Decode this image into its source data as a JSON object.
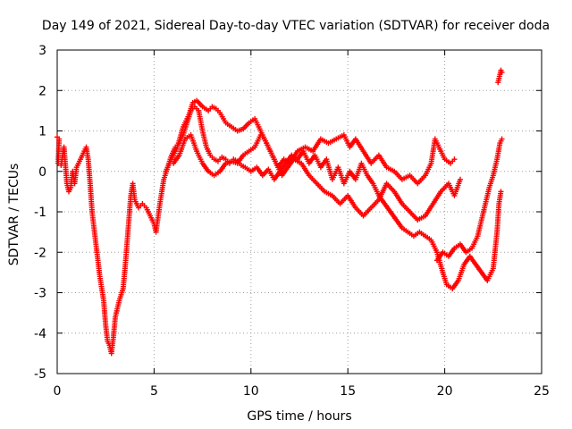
{
  "chart_data": {
    "type": "scatter",
    "title": "Day 149 of 2021, Sidereal Day-to-day VTEC variation (SDTVAR) for receiver doda",
    "xlabel": "GPS time / hours",
    "ylabel": "SDTVAR / TECUs",
    "xlim": [
      0,
      25
    ],
    "ylim": [
      -5,
      3
    ],
    "x_ticks": [
      0,
      5,
      10,
      15,
      20,
      25
    ],
    "y_ticks": [
      -5,
      -4,
      -3,
      -2,
      -1,
      0,
      1,
      2,
      3
    ],
    "grid": true,
    "marker": "+",
    "color": "#ff0000",
    "series": [
      {
        "name": "trace-main",
        "points": [
          [
            0.0,
            0.85
          ],
          [
            0.1,
            0.8
          ],
          [
            0.05,
            0.2
          ],
          [
            0.2,
            0.15
          ],
          [
            0.35,
            0.6
          ],
          [
            0.4,
            0.3
          ],
          [
            0.5,
            -0.3
          ],
          [
            0.6,
            -0.5
          ],
          [
            0.7,
            -0.4
          ],
          [
            0.8,
            0.0
          ],
          [
            0.9,
            -0.3
          ],
          [
            1.0,
            0.1
          ],
          [
            1.2,
            0.3
          ],
          [
            1.4,
            0.5
          ],
          [
            1.5,
            0.6
          ],
          [
            1.6,
            0.3
          ],
          [
            1.7,
            -0.3
          ],
          [
            1.8,
            -1.0
          ],
          [
            2.0,
            -1.8
          ],
          [
            2.2,
            -2.6
          ],
          [
            2.4,
            -3.2
          ],
          [
            2.5,
            -3.8
          ],
          [
            2.6,
            -4.2
          ],
          [
            2.7,
            -4.3
          ],
          [
            2.8,
            -4.5
          ],
          [
            2.9,
            -4.1
          ],
          [
            3.0,
            -3.6
          ],
          [
            3.2,
            -3.2
          ],
          [
            3.4,
            -2.9
          ],
          [
            3.5,
            -2.4
          ],
          [
            3.6,
            -1.8
          ],
          [
            3.7,
            -1.2
          ],
          [
            3.8,
            -0.6
          ],
          [
            3.9,
            -0.3
          ],
          [
            4.0,
            -0.7
          ],
          [
            4.2,
            -0.9
          ],
          [
            4.4,
            -0.8
          ],
          [
            4.6,
            -0.9
          ],
          [
            4.8,
            -1.1
          ],
          [
            5.0,
            -1.3
          ],
          [
            5.1,
            -1.5
          ],
          [
            5.3,
            -0.8
          ],
          [
            5.5,
            -0.2
          ],
          [
            5.7,
            0.1
          ],
          [
            5.9,
            0.4
          ],
          [
            6.1,
            0.6
          ],
          [
            6.3,
            0.7
          ],
          [
            6.5,
            0.9
          ],
          [
            6.7,
            1.2
          ],
          [
            6.9,
            1.5
          ],
          [
            7.1,
            1.6
          ],
          [
            7.3,
            1.5
          ],
          [
            7.5,
            1.0
          ],
          [
            7.7,
            0.6
          ],
          [
            7.9,
            0.4
          ],
          [
            8.1,
            0.3
          ],
          [
            8.3,
            0.25
          ],
          [
            8.5,
            0.35
          ],
          [
            8.7,
            0.3
          ],
          [
            8.9,
            0.2
          ],
          [
            9.1,
            0.3
          ],
          [
            9.3,
            0.25
          ],
          [
            9.5,
            0.15
          ],
          [
            9.7,
            0.1
          ],
          [
            10.0,
            0.0
          ],
          [
            10.3,
            0.1
          ],
          [
            10.6,
            -0.1
          ],
          [
            10.9,
            0.05
          ],
          [
            11.2,
            -0.2
          ],
          [
            11.5,
            0.0
          ],
          [
            11.8,
            0.2
          ],
          [
            12.1,
            0.4
          ],
          [
            12.4,
            0.3
          ],
          [
            12.7,
            0.5
          ],
          [
            13.0,
            0.2
          ],
          [
            13.3,
            0.4
          ],
          [
            13.6,
            0.1
          ],
          [
            13.9,
            0.3
          ],
          [
            14.2,
            -0.2
          ],
          [
            14.5,
            0.1
          ],
          [
            14.8,
            -0.3
          ],
          [
            15.1,
            0.0
          ],
          [
            15.4,
            -0.2
          ],
          [
            15.7,
            0.2
          ],
          [
            16.0,
            -0.1
          ],
          [
            16.3,
            -0.3
          ],
          [
            16.6,
            -0.6
          ],
          [
            16.9,
            -0.8
          ],
          [
            17.2,
            -1.0
          ],
          [
            17.5,
            -1.2
          ],
          [
            17.8,
            -1.4
          ],
          [
            18.1,
            -1.5
          ],
          [
            18.4,
            -1.6
          ],
          [
            18.7,
            -1.5
          ],
          [
            19.0,
            -1.6
          ],
          [
            19.3,
            -1.7
          ],
          [
            19.6,
            -2.0
          ],
          [
            19.9,
            -2.5
          ],
          [
            20.1,
            -2.8
          ],
          [
            20.4,
            -2.9
          ],
          [
            20.7,
            -2.7
          ],
          [
            21.0,
            -2.3
          ],
          [
            21.3,
            -2.1
          ],
          [
            21.6,
            -2.3
          ],
          [
            21.9,
            -2.5
          ],
          [
            22.2,
            -2.7
          ],
          [
            22.5,
            -2.4
          ],
          [
            22.7,
            -1.5
          ],
          [
            22.8,
            -0.8
          ],
          [
            22.9,
            -0.5
          ]
        ]
      },
      {
        "name": "trace-upper",
        "points": [
          [
            5.6,
            0.0
          ],
          [
            5.9,
            0.3
          ],
          [
            6.2,
            0.6
          ],
          [
            6.5,
            1.1
          ],
          [
            6.8,
            1.4
          ],
          [
            7.0,
            1.7
          ],
          [
            7.2,
            1.75
          ],
          [
            7.5,
            1.6
          ],
          [
            7.8,
            1.5
          ],
          [
            8.0,
            1.6
          ],
          [
            8.2,
            1.55
          ],
          [
            8.4,
            1.45
          ],
          [
            8.7,
            1.2
          ],
          [
            9.0,
            1.1
          ],
          [
            9.3,
            1.0
          ],
          [
            9.6,
            1.05
          ],
          [
            9.9,
            1.2
          ],
          [
            10.2,
            1.3
          ],
          [
            10.5,
            1.0
          ],
          [
            10.8,
            0.7
          ],
          [
            11.1,
            0.4
          ],
          [
            11.4,
            0.1
          ],
          [
            11.7,
            0.3
          ],
          [
            12.0,
            0.2
          ],
          [
            12.4,
            0.5
          ],
          [
            12.8,
            0.6
          ],
          [
            13.2,
            0.5
          ],
          [
            13.6,
            0.8
          ],
          [
            14.0,
            0.7
          ],
          [
            14.4,
            0.8
          ],
          [
            14.8,
            0.9
          ],
          [
            15.1,
            0.6
          ],
          [
            15.4,
            0.8
          ],
          [
            15.8,
            0.5
          ],
          [
            16.2,
            0.2
          ],
          [
            16.6,
            0.4
          ],
          [
            17.0,
            0.1
          ],
          [
            17.4,
            0.0
          ],
          [
            17.8,
            -0.2
          ],
          [
            18.2,
            -0.1
          ],
          [
            18.6,
            -0.3
          ],
          [
            19.0,
            -0.1
          ],
          [
            19.3,
            0.2
          ],
          [
            19.5,
            0.8
          ],
          [
            19.7,
            0.6
          ],
          [
            20.0,
            0.3
          ],
          [
            20.3,
            0.2
          ],
          [
            20.5,
            0.3
          ]
        ]
      },
      {
        "name": "trace-mid",
        "points": [
          [
            6.0,
            0.2
          ],
          [
            6.3,
            0.4
          ],
          [
            6.6,
            0.8
          ],
          [
            6.9,
            0.9
          ],
          [
            7.2,
            0.5
          ],
          [
            7.5,
            0.2
          ],
          [
            7.8,
            0.0
          ],
          [
            8.1,
            -0.1
          ],
          [
            8.4,
            0.0
          ],
          [
            8.7,
            0.2
          ],
          [
            9.0,
            0.25
          ],
          [
            9.3,
            0.2
          ],
          [
            9.6,
            0.4
          ],
          [
            9.9,
            0.5
          ],
          [
            10.2,
            0.6
          ],
          [
            10.5,
            0.9
          ],
          [
            10.7,
            0.8
          ],
          [
            11.0,
            0.5
          ],
          [
            11.3,
            0.2
          ],
          [
            11.6,
            -0.1
          ],
          [
            11.9,
            0.1
          ],
          [
            12.2,
            0.3
          ],
          [
            12.6,
            0.2
          ],
          [
            13.0,
            -0.1
          ],
          [
            13.4,
            -0.3
          ],
          [
            13.8,
            -0.5
          ],
          [
            14.2,
            -0.6
          ],
          [
            14.6,
            -0.8
          ],
          [
            15.0,
            -0.6
          ],
          [
            15.4,
            -0.9
          ],
          [
            15.8,
            -1.1
          ],
          [
            16.2,
            -0.9
          ],
          [
            16.6,
            -0.7
          ],
          [
            17.0,
            -0.3
          ],
          [
            17.4,
            -0.5
          ],
          [
            17.8,
            -0.8
          ],
          [
            18.2,
            -1.0
          ],
          [
            18.6,
            -1.2
          ],
          [
            19.0,
            -1.1
          ],
          [
            19.4,
            -0.8
          ],
          [
            19.8,
            -0.5
          ],
          [
            20.2,
            -0.3
          ],
          [
            20.5,
            -0.6
          ],
          [
            20.8,
            -0.2
          ]
        ]
      },
      {
        "name": "trace-late",
        "points": [
          [
            19.6,
            -2.2
          ],
          [
            19.9,
            -2.0
          ],
          [
            20.2,
            -2.1
          ],
          [
            20.5,
            -1.9
          ],
          [
            20.8,
            -1.8
          ],
          [
            21.1,
            -2.0
          ],
          [
            21.4,
            -1.9
          ],
          [
            21.7,
            -1.6
          ],
          [
            21.9,
            -1.2
          ],
          [
            22.1,
            -0.8
          ],
          [
            22.3,
            -0.4
          ],
          [
            22.5,
            -0.1
          ],
          [
            22.7,
            0.3
          ],
          [
            22.85,
            0.7
          ],
          [
            22.95,
            0.8
          ]
        ]
      },
      {
        "name": "trace-end-cluster",
        "points": [
          [
            22.75,
            2.2
          ],
          [
            22.8,
            2.3
          ],
          [
            22.85,
            2.4
          ],
          [
            22.9,
            2.5
          ],
          [
            22.95,
            2.45
          ]
        ]
      }
    ]
  }
}
